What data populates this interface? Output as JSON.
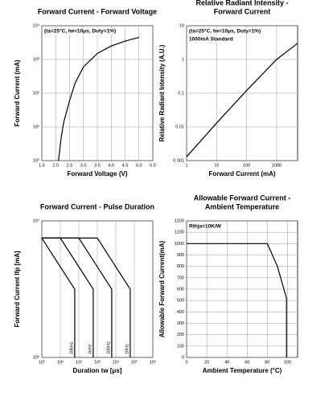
{
  "chart_data": [
    {
      "type": "line",
      "title": [
        "Forward Current - Forward Voltage"
      ],
      "x_label": "Forward Voltage (V)",
      "y_label": "Forward Current (mA)",
      "annotations": [
        "(ta=25°C, tw=10μs, Duty=1%)"
      ],
      "xscale": "linear",
      "yscale": "log",
      "grid": true,
      "xlim": [
        1.5,
        5.5
      ],
      "ylim": [
        1,
        10000
      ],
      "xticks": [
        1.5,
        {
          "value": 2,
          "label": "2.0"
        },
        2.5,
        {
          "value": 3,
          "label": "3.0"
        },
        3.5,
        {
          "value": 4,
          "label": "4.0"
        },
        4.5,
        {
          "value": 5,
          "label": "5.0"
        },
        5.5
      ],
      "yticks": [
        {
          "value": 1,
          "label": "10⁰"
        },
        {
          "value": 10,
          "label": "10¹"
        },
        {
          "value": 100,
          "label": "10²"
        },
        {
          "value": 1000,
          "label": "10³"
        },
        {
          "value": 10000,
          "label": "10⁴"
        }
      ],
      "series": [
        {
          "color": "#000000",
          "x": [
            2.1,
            2.2,
            2.3,
            2.5,
            2.7,
            3.0,
            3.5,
            4.0,
            4.5,
            5.0
          ],
          "values": [
            1,
            5,
            15,
            60,
            200,
            600,
            1500,
            2500,
            3500,
            4500
          ]
        }
      ]
    },
    {
      "type": "line",
      "title": [
        "Relative Radiant Intensity -",
        "Forward Current"
      ],
      "x_label": "Forward Current (mA)",
      "y_label": "Relative Radiant Intensity (A.U.)",
      "annotations": [
        "(ta=25°C, tw=10μs, Duty=1%)",
        "1000mA Standard"
      ],
      "xscale": "log",
      "yscale": "log",
      "grid": true,
      "xlim": [
        1,
        5000
      ],
      "ylim": [
        0.001,
        10
      ],
      "xticks": [
        1,
        10,
        100,
        1000
      ],
      "yticks": [
        0.001,
        0.01,
        0.1,
        1,
        10
      ],
      "series": [
        {
          "color": "#000000",
          "x": [
            1,
            10,
            100,
            1000,
            5000
          ],
          "values": [
            0.0013,
            0.013,
            0.12,
            1,
            3
          ]
        }
      ]
    },
    {
      "type": "line",
      "title": [
        "Forward Current - Pulse Duration"
      ],
      "x_label": "Duration tw [μs]",
      "y_label": "Forward Current Ifp [mA]",
      "xscale": "log",
      "yscale": "log",
      "grid": true,
      "xlim": [
        1,
        1000000
      ],
      "ylim": [
        100,
        10000
      ],
      "xticks": [
        {
          "value": 1,
          "label": "10⁰"
        },
        {
          "value": 10,
          "label": "10¹"
        },
        {
          "value": 100,
          "label": "10²"
        },
        {
          "value": 1000,
          "label": "10³"
        },
        {
          "value": 10000,
          "label": "10⁴"
        },
        {
          "value": 100000,
          "label": "10⁵"
        },
        {
          "value": 1000000,
          "label": "10⁶"
        }
      ],
      "yticks": [
        {
          "value": 100,
          "label": "10²"
        },
        {
          "value": 10000,
          "label": "10⁴"
        }
      ],
      "series": [
        {
          "name": "10kHz",
          "color": "#000000",
          "x": [
            1,
            1,
            60,
            60
          ],
          "values": [
            5600,
            5600,
            1000,
            100
          ]
        },
        {
          "name": "1kHz",
          "color": "#000000",
          "x": [
            1,
            10,
            600,
            600
          ],
          "values": [
            5600,
            5600,
            1000,
            100
          ]
        },
        {
          "name": "100Hz",
          "color": "#000000",
          "x": [
            1,
            100,
            6000,
            6000
          ],
          "values": [
            5600,
            5600,
            1000,
            100
          ]
        },
        {
          "name": "10Hz",
          "color": "#000000",
          "x": [
            1,
            1000,
            60000,
            60000
          ],
          "values": [
            5600,
            5600,
            1000,
            100
          ]
        }
      ]
    },
    {
      "type": "line",
      "title": [
        "Allowable Forward Current -",
        "Ambient Temperature"
      ],
      "x_label": "Ambient Temperature (°C)",
      "y_label": "Allowable Forward Current(mA)",
      "annotations": [
        "Rthja=10K/W"
      ],
      "xscale": "linear",
      "yscale": "linear",
      "grid": true,
      "xlim": [
        0,
        110
      ],
      "ylim": [
        0,
        1200
      ],
      "xticks": [
        0,
        20,
        40,
        60,
        80,
        100
      ],
      "yticks": [
        0,
        100,
        200,
        300,
        400,
        500,
        600,
        700,
        800,
        900,
        1000,
        1100,
        1200
      ],
      "series": [
        {
          "color": "#000000",
          "x": [
            0,
            80,
            90,
            99,
            99
          ],
          "values": [
            1000,
            1000,
            800,
            520,
            0
          ]
        }
      ]
    }
  ]
}
